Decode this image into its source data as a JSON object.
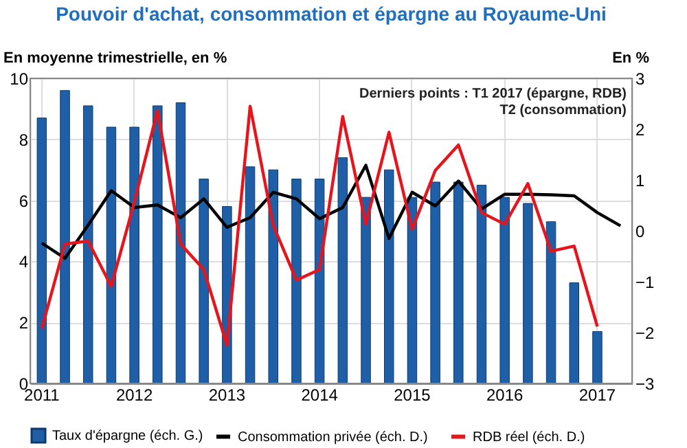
{
  "chart_data": {
    "type": "bar",
    "title": "Pouvoir d'achat, consommation et épargne au Royaume-Uni",
    "ylabel": "En moyenne trimestrielle, en %",
    "y2label": "En %",
    "categories": [
      "2011",
      null,
      null,
      null,
      "2012",
      null,
      null,
      null,
      "2013",
      null,
      null,
      null,
      "2014",
      null,
      null,
      null,
      "2015",
      null,
      null,
      null,
      "2016",
      null,
      null,
      null,
      "2017",
      null
    ],
    "series": [
      {
        "name": "Taux d'épargne (éch. G.)",
        "color": "#1f5fa8",
        "values": [
          8.7,
          9.6,
          9.1,
          8.4,
          8.4,
          9.1,
          9.2,
          6.7,
          5.8,
          7.1,
          7.0,
          6.7,
          6.7,
          7.4,
          6.1,
          7.0,
          6.1,
          6.6,
          6.6,
          6.5,
          6.1,
          5.9,
          5.3,
          3.3,
          1.7,
          null
        ]
      },
      {
        "name": "Consommation privée (éch. D.)",
        "type": "line",
        "axis": "y2",
        "color": "#000000",
        "values": [
          -0.24,
          -0.54,
          0.11,
          0.79,
          0.46,
          0.51,
          0.26,
          0.63,
          0.07,
          0.26,
          0.76,
          0.63,
          0.24,
          0.46,
          1.29,
          -0.15,
          0.76,
          0.49,
          0.98,
          0.43,
          0.72,
          0.72,
          0.71,
          0.69,
          0.36,
          0.1
        ]
      },
      {
        "name": "RDB réel (éch. D.)",
        "type": "line",
        "axis": "y2",
        "color": "#e8141c",
        "values": [
          -1.92,
          -0.26,
          -0.2,
          -1.09,
          0.57,
          2.37,
          -0.26,
          -0.76,
          -2.25,
          2.45,
          0.11,
          -0.97,
          -0.76,
          2.25,
          0.13,
          1.94,
          0.03,
          1.19,
          1.69,
          0.36,
          0.13,
          0.93,
          -0.4,
          -0.3,
          -1.88,
          null
        ]
      }
    ],
    "ylim": [
      0,
      10
    ],
    "yticks": [
      0,
      2,
      4,
      6,
      8,
      10
    ],
    "y2lim": [
      -3,
      3
    ],
    "y2ticks": [
      -3,
      -2,
      -1,
      0,
      1,
      2,
      3
    ],
    "grid": true,
    "legend": "bottom",
    "line_style": "solid",
    "marker": "none",
    "annotations": [
      "Derniers points : T1 2017 (épargne, RDB)\nT2 (consommation)"
    ]
  }
}
